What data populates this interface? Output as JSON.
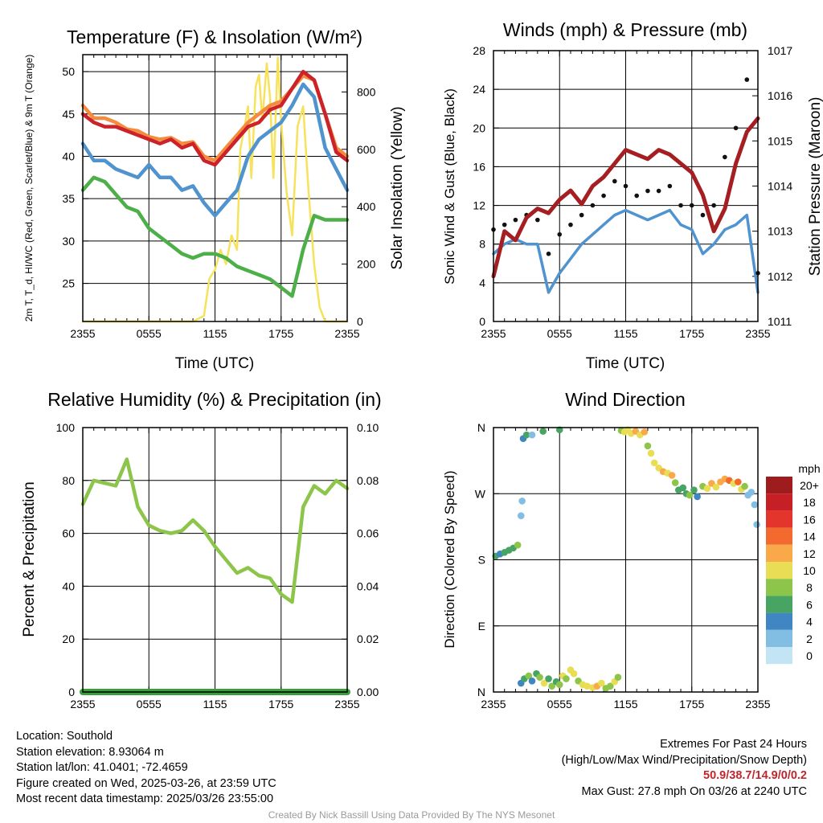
{
  "colors": {
    "red": "#cc2229",
    "orange": "#f58b3c",
    "blue": "#4f93cf",
    "green": "#4caf48",
    "yellow": "#f7e25b",
    "maroon": "#a51f22",
    "rh": "#8dc54b",
    "precip": "#3a9e3c",
    "black": "#111111"
  },
  "speed_scale": {
    "title": "mph",
    "labels": [
      "20+",
      "18",
      "16",
      "14",
      "12",
      "10",
      "8",
      "6",
      "4",
      "2",
      "0"
    ],
    "colors": [
      "#9e1b1e",
      "#c62026",
      "#e4352c",
      "#f26a2d",
      "#f9a94a",
      "#e8dd55",
      "#8dc54b",
      "#47a463",
      "#3f86c2",
      "#82bde4",
      "#c2e4f5"
    ]
  },
  "chart_data": [
    {
      "type": "line",
      "title": "Temperature (F) & Insolation (W/m²)",
      "xlabel": "Time (UTC)",
      "x_ticks": [
        "2355",
        "0555",
        "1155",
        "1755",
        "2355"
      ],
      "ylabel": "2m T, T_d, HI/WC (Red, Green, Scarlet/Blue) & 9m T (Orange)",
      "ylim": [
        20.5,
        52
      ],
      "yticks": [
        25,
        30,
        35,
        40,
        45,
        50
      ],
      "y2label": "Solar Insolation (Yellow)",
      "y2lim": [
        0,
        930
      ],
      "y2ticks": [
        0,
        200,
        400,
        600,
        800
      ],
      "series": [
        {
          "id": "orange",
          "axis": "y",
          "x": [
            0,
            1,
            2,
            3,
            4,
            5,
            6,
            7,
            8,
            9,
            10,
            11,
            12,
            13,
            14,
            15,
            16,
            17,
            18,
            19,
            20,
            21,
            22,
            23,
            24
          ],
          "values": [
            46,
            44.5,
            44.5,
            44,
            43.2,
            43,
            42.3,
            42,
            42.2,
            41.5,
            41.7,
            40,
            39.5,
            41,
            42.5,
            44,
            45,
            46,
            46.5,
            48,
            49.5,
            49,
            45,
            41,
            40
          ]
        },
        {
          "id": "red",
          "axis": "y",
          "x": [
            0,
            1,
            2,
            3,
            4,
            5,
            6,
            7,
            8,
            9,
            10,
            11,
            12,
            13,
            14,
            15,
            16,
            17,
            18,
            19,
            20,
            21,
            22,
            23,
            24
          ],
          "values": [
            45,
            44,
            43.5,
            43.5,
            43,
            42.5,
            42,
            41.5,
            42,
            41,
            41.5,
            39.5,
            39,
            40.5,
            42,
            43.5,
            44,
            45.5,
            46,
            48,
            50,
            49,
            45,
            40.5,
            39.5
          ]
        },
        {
          "id": "blue",
          "axis": "y",
          "x": [
            0,
            1,
            2,
            3,
            4,
            5,
            6,
            7,
            8,
            9,
            10,
            11,
            12,
            13,
            14,
            15,
            16,
            17,
            18,
            19,
            20,
            21,
            22,
            23,
            24
          ],
          "values": [
            41.5,
            39.5,
            39.5,
            38.5,
            38,
            37.5,
            39,
            37.5,
            37.5,
            36,
            36.5,
            34.5,
            33,
            34.5,
            36,
            40,
            42,
            43,
            44,
            46,
            48.5,
            47,
            41,
            38.5,
            36
          ]
        },
        {
          "id": "green",
          "axis": "y",
          "x": [
            0,
            1,
            2,
            3,
            4,
            5,
            6,
            7,
            8,
            9,
            10,
            11,
            12,
            13,
            14,
            15,
            16,
            17,
            18,
            19,
            20,
            21,
            22,
            23,
            24
          ],
          "values": [
            36,
            37.5,
            37,
            35.5,
            34,
            33.5,
            31.5,
            30.5,
            29.5,
            28.5,
            28,
            28.5,
            28.5,
            28,
            27,
            26.5,
            26,
            25.5,
            24.5,
            23.5,
            29,
            33,
            32.5,
            32.5,
            32.5
          ]
        },
        {
          "id": "yellow",
          "axis": "y2",
          "x": [
            0,
            10,
            11,
            11.5,
            12,
            12.5,
            13,
            13.5,
            14,
            14.3,
            14.7,
            15,
            15.3,
            15.7,
            16,
            16.3,
            16.7,
            17,
            17.3,
            17.7,
            18,
            18.5,
            19,
            19.5,
            20,
            20.5,
            21,
            21.5,
            22,
            24
          ],
          "values": [
            0,
            0,
            20,
            150,
            180,
            250,
            200,
            300,
            250,
            600,
            680,
            750,
            500,
            820,
            860,
            700,
            900,
            780,
            500,
            920,
            700,
            450,
            300,
            680,
            750,
            450,
            200,
            50,
            0,
            0
          ]
        }
      ]
    },
    {
      "type": "line",
      "title": "Winds (mph) & Pressure (mb)",
      "xlabel": "Time (UTC)",
      "x_ticks": [
        "2355",
        "0555",
        "1155",
        "1755",
        "2355"
      ],
      "ylabel": "Sonic Wind & Gust (Blue, Black)",
      "ylim": [
        0,
        28
      ],
      "yticks": [
        0,
        4,
        8,
        12,
        16,
        20,
        24,
        28
      ],
      "y2label": "Station Pressure (Maroon)",
      "y2lim": [
        1011,
        1017
      ],
      "y2ticks": [
        1011,
        1012,
        1013,
        1014,
        1015,
        1016,
        1017
      ],
      "series": [
        {
          "id": "blue",
          "axis": "y",
          "x": [
            0,
            1,
            2,
            3,
            4,
            5,
            6,
            7,
            8,
            9,
            10,
            11,
            12,
            13,
            14,
            15,
            16,
            17,
            18,
            19,
            20,
            21,
            22,
            23,
            24
          ],
          "values": [
            7,
            8,
            8.5,
            8,
            8,
            3,
            5,
            6.5,
            8,
            9,
            10,
            11,
            11.5,
            11,
            10.5,
            11,
            11.5,
            10,
            9.5,
            7,
            8,
            9.5,
            10,
            11,
            3
          ]
        },
        {
          "id": "black",
          "axis": "y",
          "kind": "points",
          "x": [
            0,
            1,
            2,
            3,
            4,
            5,
            6,
            7,
            8,
            9,
            10,
            11,
            12,
            13,
            14,
            15,
            16,
            17,
            18,
            19,
            20,
            21,
            22,
            23,
            24
          ],
          "values": [
            9.5,
            10,
            10.5,
            11,
            10.5,
            7,
            9,
            10,
            11,
            12,
            13,
            14.5,
            14,
            13,
            13.5,
            13.5,
            14,
            12,
            12,
            11,
            12,
            17,
            20,
            25,
            5
          ]
        },
        {
          "id": "maroon",
          "axis": "y2",
          "x": [
            0,
            1,
            2,
            3,
            4,
            5,
            6,
            7,
            8,
            9,
            10,
            11,
            12,
            13,
            14,
            15,
            16,
            17,
            18,
            19,
            20,
            21,
            22,
            23,
            24
          ],
          "values": [
            1012,
            1013,
            1012.8,
            1013.3,
            1013.5,
            1013.4,
            1013.7,
            1013.9,
            1013.6,
            1014,
            1014.2,
            1014.5,
            1014.8,
            1014.7,
            1014.6,
            1014.8,
            1014.7,
            1014.5,
            1014.3,
            1013.8,
            1013,
            1013.5,
            1014.5,
            1015.2,
            1015.5
          ]
        }
      ]
    },
    {
      "type": "line",
      "title": "Relative Humidity (%) & Precipitation (in)",
      "x_ticks": [
        "2355",
        "0555",
        "1155",
        "1755",
        "2355"
      ],
      "ylabel": "Percent & Precipitation",
      "ylim": [
        0,
        100
      ],
      "yticks": [
        0,
        20,
        40,
        60,
        80,
        100
      ],
      "y2lim": [
        0,
        0.1
      ],
      "y2ticks": [
        "0.00",
        "0.02",
        "0.04",
        "0.06",
        "0.08",
        "0.10"
      ],
      "series": [
        {
          "id": "rh",
          "axis": "y",
          "x": [
            0,
            1,
            2,
            3,
            4,
            5,
            6,
            7,
            8,
            9,
            10,
            11,
            12,
            13,
            14,
            15,
            16,
            17,
            18,
            19,
            20,
            21,
            22,
            23,
            24
          ],
          "values": [
            71,
            80,
            79,
            78,
            88,
            70,
            63,
            61,
            60,
            61,
            65,
            61,
            55,
            50,
            45,
            47,
            44,
            43,
            37,
            34,
            70,
            78,
            75,
            80,
            77
          ]
        },
        {
          "id": "precip",
          "axis": "y2",
          "x": [
            0,
            24
          ],
          "values": [
            0,
            0
          ]
        }
      ]
    },
    {
      "type": "scatter",
      "title": "Wind Direction",
      "x_ticks": [
        "2355",
        "0555",
        "1155",
        "1755",
        "2355"
      ],
      "ylabel": "Direction (Colored By Speed)",
      "ytick_labels": [
        "N",
        "E",
        "S",
        "W",
        "N"
      ],
      "ylim": [
        0,
        360
      ],
      "note": "direction in degrees; speed in mph",
      "points": [
        {
          "x": 0.2,
          "dir": 185,
          "speed": 6
        },
        {
          "x": 0.6,
          "dir": 188,
          "speed": 5
        },
        {
          "x": 1.0,
          "dir": 190,
          "speed": 7
        },
        {
          "x": 1.4,
          "dir": 193,
          "speed": 6
        },
        {
          "x": 1.8,
          "dir": 196,
          "speed": 7
        },
        {
          "x": 2.2,
          "dir": 200,
          "speed": 8
        },
        {
          "x": 2.5,
          "dir": 240,
          "speed": 3
        },
        {
          "x": 2.6,
          "dir": 260,
          "speed": 2
        },
        {
          "x": 2.7,
          "dir": 345,
          "speed": 5
        },
        {
          "x": 3.0,
          "dir": 350,
          "speed": 6
        },
        {
          "x": 3.5,
          "dir": 350,
          "speed": 3
        },
        {
          "x": 4.5,
          "dir": 355,
          "speed": 6
        },
        {
          "x": 6.0,
          "dir": 357,
          "speed": 7
        },
        {
          "x": 2.5,
          "dir": 12,
          "speed": 4
        },
        {
          "x": 2.8,
          "dir": 18,
          "speed": 6
        },
        {
          "x": 3.2,
          "dir": 22,
          "speed": 8
        },
        {
          "x": 3.5,
          "dir": 15,
          "speed": 5
        },
        {
          "x": 3.9,
          "dir": 25,
          "speed": 7
        },
        {
          "x": 4.2,
          "dir": 20,
          "speed": 9
        },
        {
          "x": 4.6,
          "dir": 12,
          "speed": 10
        },
        {
          "x": 5.0,
          "dir": 18,
          "speed": 6
        },
        {
          "x": 5.3,
          "dir": 8,
          "speed": 8
        },
        {
          "x": 5.7,
          "dir": 14,
          "speed": 7
        },
        {
          "x": 6.0,
          "dir": 10,
          "speed": 9
        },
        {
          "x": 6.3,
          "dir": 22,
          "speed": 10
        },
        {
          "x": 6.6,
          "dir": 18,
          "speed": 8
        },
        {
          "x": 7.0,
          "dir": 30,
          "speed": 11
        },
        {
          "x": 7.3,
          "dir": 25,
          "speed": 10
        },
        {
          "x": 7.7,
          "dir": 15,
          "speed": 9
        },
        {
          "x": 8.1,
          "dir": 10,
          "speed": 10
        },
        {
          "x": 8.5,
          "dir": 8,
          "speed": 11
        },
        {
          "x": 9.0,
          "dir": 6,
          "speed": 10
        },
        {
          "x": 9.4,
          "dir": 8,
          "speed": 12
        },
        {
          "x": 9.8,
          "dir": 12,
          "speed": 11
        },
        {
          "x": 10.2,
          "dir": 5,
          "speed": 9
        },
        {
          "x": 10.6,
          "dir": 8,
          "speed": 8
        },
        {
          "x": 11.0,
          "dir": 14,
          "speed": 10
        },
        {
          "x": 11.3,
          "dir": 20,
          "speed": 9
        },
        {
          "x": 11.6,
          "dir": 356,
          "speed": 9
        },
        {
          "x": 11.9,
          "dir": 354,
          "speed": 10
        },
        {
          "x": 12.2,
          "dir": 357,
          "speed": 11
        },
        {
          "x": 12.5,
          "dir": 352,
          "speed": 10
        },
        {
          "x": 12.9,
          "dir": 355,
          "speed": 12
        },
        {
          "x": 13.3,
          "dir": 350,
          "speed": 11
        },
        {
          "x": 13.7,
          "dir": 354,
          "speed": 12
        },
        {
          "x": 14.0,
          "dir": 335,
          "speed": 9
        },
        {
          "x": 14.3,
          "dir": 325,
          "speed": 10
        },
        {
          "x": 14.6,
          "dir": 312,
          "speed": 10
        },
        {
          "x": 15.0,
          "dir": 305,
          "speed": 11
        },
        {
          "x": 15.4,
          "dir": 300,
          "speed": 12
        },
        {
          "x": 15.8,
          "dir": 298,
          "speed": 11
        },
        {
          "x": 16.2,
          "dir": 295,
          "speed": 13
        },
        {
          "x": 16.5,
          "dir": 285,
          "speed": 8
        },
        {
          "x": 16.8,
          "dir": 275,
          "speed": 7
        },
        {
          "x": 17.2,
          "dir": 278,
          "speed": 6
        },
        {
          "x": 17.5,
          "dir": 270,
          "speed": 7
        },
        {
          "x": 17.8,
          "dir": 268,
          "speed": 8
        },
        {
          "x": 18.2,
          "dir": 275,
          "speed": 6
        },
        {
          "x": 18.5,
          "dir": 266,
          "speed": 5
        },
        {
          "x": 19.0,
          "dir": 280,
          "speed": 9
        },
        {
          "x": 19.4,
          "dir": 277,
          "speed": 10
        },
        {
          "x": 19.8,
          "dir": 284,
          "speed": 12
        },
        {
          "x": 20.2,
          "dir": 279,
          "speed": 11
        },
        {
          "x": 20.6,
          "dir": 286,
          "speed": 12
        },
        {
          "x": 21.0,
          "dir": 290,
          "speed": 13
        },
        {
          "x": 21.4,
          "dir": 288,
          "speed": 14
        },
        {
          "x": 21.8,
          "dir": 284,
          "speed": 11
        },
        {
          "x": 22.2,
          "dir": 286,
          "speed": 15
        },
        {
          "x": 22.5,
          "dir": 276,
          "speed": 10
        },
        {
          "x": 22.8,
          "dir": 280,
          "speed": 9
        },
        {
          "x": 23.1,
          "dir": 268,
          "speed": 3
        },
        {
          "x": 23.4,
          "dir": 272,
          "speed": 2
        },
        {
          "x": 23.7,
          "dir": 255,
          "speed": 3
        },
        {
          "x": 23.9,
          "dir": 228,
          "speed": 2
        }
      ]
    }
  ],
  "info": {
    "location": "Location: Southold",
    "elevation": "Station elevation: 8.93064 m",
    "latlon": "Station lat/lon: 41.0401; -72.4659",
    "created": "Figure created on Wed, 2025-03-26, at 23:59 UTC",
    "recent": "Most recent data timestamp: 2025/03/26 23:55:00"
  },
  "extremes": {
    "title": "Extremes For Past 24 Hours",
    "subtitle": "(High/Low/Max Wind/Precipitation/Snow Depth)",
    "values": "50.9/38.7/14.9/0/0.2",
    "gust": "Max Gust: 27.8 mph On 03/26 at 2240 UTC"
  },
  "credit": "Created By Nick Bassill Using Data Provided By The NYS Mesonet"
}
